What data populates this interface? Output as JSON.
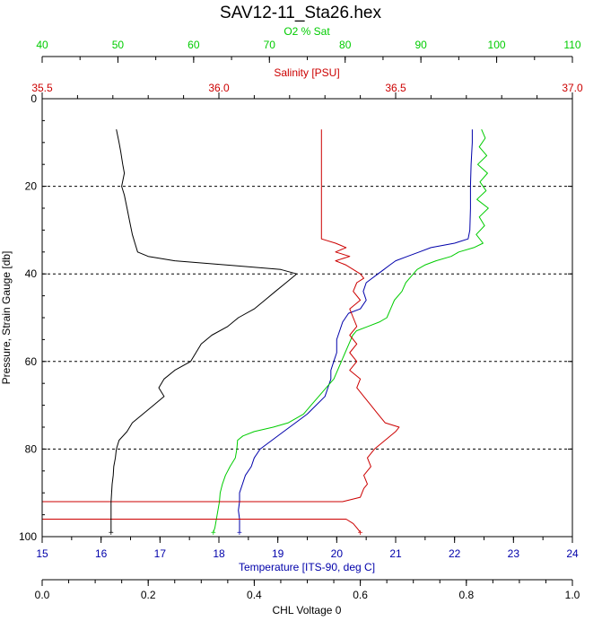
{
  "chart_data": {
    "type": "line",
    "title": "SAV12-11_Sta26.hex",
    "colors": {
      "o2": "#00cc00",
      "salinity": "#cc0000",
      "temperature": "#0000aa",
      "chl": "#000000",
      "grid": "#000000"
    },
    "axes": {
      "o2": {
        "label": "O2 % Sat",
        "position": "top-outer",
        "range": [
          40,
          110
        ],
        "ticks": [
          40,
          50,
          60,
          70,
          80,
          90,
          100,
          110
        ],
        "tick_labels": [
          "40",
          "50",
          "60",
          "70",
          "80",
          "90",
          "100",
          "110"
        ]
      },
      "salinity": {
        "label": "Salinity [PSU]",
        "position": "top-inner",
        "range": [
          35.5,
          37.0
        ],
        "ticks": [
          35.5,
          36.0,
          36.5,
          37.0
        ],
        "tick_labels": [
          "35.5",
          "36.0",
          "36.5",
          "37.0"
        ]
      },
      "temperature": {
        "label": "Temperature [ITS-90, deg C]",
        "position": "bottom-inner",
        "range": [
          15,
          24
        ],
        "ticks": [
          15,
          16,
          17,
          18,
          19,
          20,
          21,
          22,
          23,
          24
        ],
        "tick_labels": [
          "15",
          "16",
          "17",
          "18",
          "19",
          "20",
          "21",
          "22",
          "23",
          "24"
        ]
      },
      "chl": {
        "label": "CHL Voltage 0",
        "position": "bottom-outer",
        "range": [
          0.0,
          1.0
        ],
        "ticks": [
          0.0,
          0.2,
          0.4,
          0.6,
          0.8,
          1.0
        ],
        "tick_labels": [
          "0.0",
          "0.2",
          "0.4",
          "0.6",
          "0.8",
          "1.0"
        ]
      },
      "pressure": {
        "label": "Pressure, Strain Gauge [db]",
        "range": [
          0,
          100
        ],
        "inverted": true,
        "ticks": [
          0,
          20,
          40,
          60,
          80,
          100
        ],
        "tick_labels": [
          "0",
          "20",
          "40",
          "60",
          "80",
          "100"
        ],
        "dashed_grid": [
          20,
          40,
          60,
          80
        ]
      }
    },
    "series": [
      {
        "key": "temperature",
        "axis": "temperature",
        "points": [
          [
            22.3,
            7
          ],
          [
            22.3,
            10
          ],
          [
            22.28,
            15
          ],
          [
            22.27,
            20
          ],
          [
            22.27,
            25
          ],
          [
            22.26,
            30
          ],
          [
            22.23,
            32
          ],
          [
            22.0,
            33
          ],
          [
            21.6,
            34
          ],
          [
            21.4,
            35
          ],
          [
            21.2,
            36
          ],
          [
            21.0,
            37
          ],
          [
            20.9,
            38
          ],
          [
            20.8,
            39
          ],
          [
            20.7,
            40
          ],
          [
            20.6,
            41
          ],
          [
            20.5,
            42
          ],
          [
            20.45,
            44
          ],
          [
            20.5,
            46
          ],
          [
            20.4,
            48
          ],
          [
            20.2,
            49
          ],
          [
            20.1,
            51
          ],
          [
            20.05,
            53
          ],
          [
            20.0,
            55
          ],
          [
            20.0,
            58
          ],
          [
            19.95,
            60
          ],
          [
            19.9,
            62
          ],
          [
            19.9,
            64
          ],
          [
            19.85,
            66
          ],
          [
            19.8,
            68
          ],
          [
            19.65,
            70
          ],
          [
            19.5,
            72
          ],
          [
            19.3,
            74
          ],
          [
            19.1,
            76
          ],
          [
            18.9,
            78
          ],
          [
            18.7,
            80
          ],
          [
            18.6,
            82
          ],
          [
            18.55,
            84
          ],
          [
            18.45,
            86
          ],
          [
            18.4,
            88
          ],
          [
            18.35,
            90
          ],
          [
            18.35,
            92
          ],
          [
            18.33,
            94
          ],
          [
            18.35,
            96
          ],
          [
            18.35,
            98
          ],
          [
            18.35,
            99
          ]
        ]
      },
      {
        "key": "o2",
        "axis": "o2",
        "points": [
          [
            98,
            7
          ],
          [
            98.5,
            9
          ],
          [
            97.7,
            11
          ],
          [
            98.7,
            13
          ],
          [
            97.5,
            15
          ],
          [
            98.8,
            17
          ],
          [
            97.8,
            19
          ],
          [
            98.6,
            21
          ],
          [
            97.4,
            23
          ],
          [
            98.9,
            25
          ],
          [
            97.7,
            27
          ],
          [
            98.4,
            29
          ],
          [
            97.3,
            31
          ],
          [
            98.2,
            33
          ],
          [
            97.0,
            34
          ],
          [
            95.0,
            35
          ],
          [
            94.0,
            36
          ],
          [
            92.0,
            37
          ],
          [
            90.5,
            38
          ],
          [
            89.5,
            39
          ],
          [
            89.0,
            40
          ],
          [
            88.5,
            41
          ],
          [
            88.0,
            42
          ],
          [
            87.5,
            44
          ],
          [
            86.5,
            46
          ],
          [
            86.0,
            48
          ],
          [
            85.5,
            50
          ],
          [
            84.5,
            51
          ],
          [
            83.0,
            52
          ],
          [
            81.5,
            53
          ],
          [
            81.0,
            54
          ],
          [
            80.5,
            56
          ],
          [
            80.0,
            58
          ],
          [
            79.5,
            60
          ],
          [
            79.0,
            62
          ],
          [
            78.5,
            64
          ],
          [
            77.5,
            66
          ],
          [
            76.5,
            68
          ],
          [
            75.5,
            70
          ],
          [
            74.5,
            72
          ],
          [
            72.5,
            74
          ],
          [
            70.5,
            75
          ],
          [
            68.0,
            76
          ],
          [
            66.5,
            77
          ],
          [
            65.8,
            78
          ],
          [
            65.7,
            80
          ],
          [
            65.5,
            82
          ],
          [
            64.8,
            84
          ],
          [
            64.2,
            86
          ],
          [
            63.8,
            88
          ],
          [
            63.5,
            90
          ],
          [
            63.4,
            92
          ],
          [
            63.2,
            94
          ],
          [
            63.0,
            96
          ],
          [
            62.8,
            98
          ],
          [
            62.6,
            99
          ]
        ]
      },
      {
        "key": "salinity",
        "axis": "salinity",
        "points": [
          [
            36.29,
            7
          ],
          [
            36.29,
            10
          ],
          [
            36.29,
            15
          ],
          [
            36.29,
            20
          ],
          [
            36.29,
            25
          ],
          [
            36.29,
            30
          ],
          [
            36.29,
            32
          ],
          [
            36.33,
            33
          ],
          [
            36.36,
            34
          ],
          [
            36.33,
            35
          ],
          [
            36.37,
            36
          ],
          [
            36.33,
            37
          ],
          [
            36.36,
            38
          ],
          [
            36.38,
            39
          ],
          [
            36.4,
            40
          ],
          [
            36.41,
            41
          ],
          [
            36.39,
            42
          ],
          [
            36.38,
            44
          ],
          [
            36.4,
            46
          ],
          [
            36.37,
            48
          ],
          [
            36.38,
            50
          ],
          [
            36.39,
            52
          ],
          [
            36.37,
            54
          ],
          [
            36.39,
            56
          ],
          [
            36.37,
            58
          ],
          [
            36.39,
            60
          ],
          [
            36.37,
            62
          ],
          [
            36.4,
            64
          ],
          [
            36.39,
            66
          ],
          [
            36.41,
            68
          ],
          [
            36.43,
            70
          ],
          [
            36.45,
            72
          ],
          [
            36.47,
            74
          ],
          [
            36.51,
            75
          ],
          [
            36.5,
            76
          ],
          [
            36.47,
            78
          ],
          [
            36.44,
            80
          ],
          [
            36.42,
            82
          ],
          [
            36.43,
            84
          ],
          [
            36.41,
            86
          ],
          [
            36.42,
            88
          ],
          [
            36.41,
            89
          ],
          [
            36.4,
            91
          ],
          [
            36.35,
            92
          ],
          [
            35.5,
            92
          ],
          [
            35.5,
            96
          ],
          [
            36.36,
            96
          ],
          [
            36.38,
            97
          ],
          [
            36.39,
            98
          ],
          [
            36.4,
            99
          ]
        ]
      },
      {
        "key": "chl",
        "axis": "chl",
        "points": [
          [
            0.14,
            7
          ],
          [
            0.145,
            10
          ],
          [
            0.148,
            12
          ],
          [
            0.152,
            15
          ],
          [
            0.155,
            17
          ],
          [
            0.15,
            20
          ],
          [
            0.155,
            22
          ],
          [
            0.16,
            25
          ],
          [
            0.165,
            28
          ],
          [
            0.17,
            31
          ],
          [
            0.175,
            33
          ],
          [
            0.18,
            35
          ],
          [
            0.2,
            36
          ],
          [
            0.25,
            37
          ],
          [
            0.35,
            38
          ],
          [
            0.45,
            39
          ],
          [
            0.48,
            40
          ],
          [
            0.46,
            42
          ],
          [
            0.44,
            44
          ],
          [
            0.42,
            46
          ],
          [
            0.4,
            48
          ],
          [
            0.37,
            50
          ],
          [
            0.35,
            52
          ],
          [
            0.32,
            54
          ],
          [
            0.3,
            56
          ],
          [
            0.29,
            58
          ],
          [
            0.28,
            60
          ],
          [
            0.25,
            62
          ],
          [
            0.23,
            64
          ],
          [
            0.22,
            66
          ],
          [
            0.23,
            68
          ],
          [
            0.21,
            70
          ],
          [
            0.19,
            72
          ],
          [
            0.17,
            74
          ],
          [
            0.16,
            76
          ],
          [
            0.145,
            78
          ],
          [
            0.14,
            80
          ],
          [
            0.138,
            82
          ],
          [
            0.135,
            84
          ],
          [
            0.134,
            86
          ],
          [
            0.132,
            88
          ],
          [
            0.131,
            90
          ],
          [
            0.13,
            92
          ],
          [
            0.13,
            94
          ],
          [
            0.13,
            96
          ],
          [
            0.13,
            98
          ],
          [
            0.13,
            99
          ]
        ]
      }
    ]
  }
}
